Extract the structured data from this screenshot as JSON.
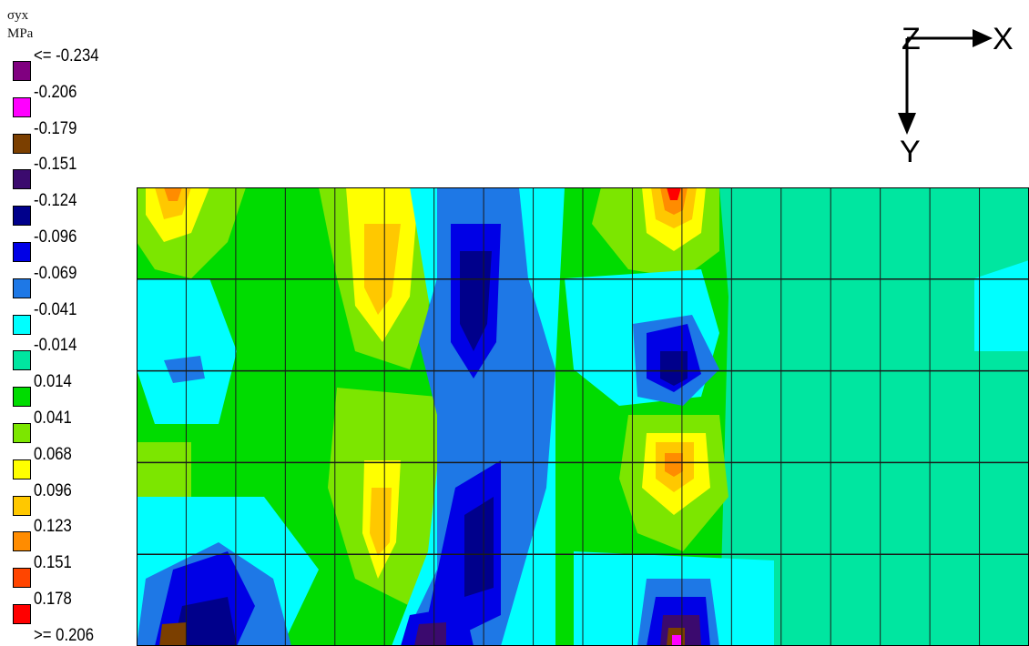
{
  "legend": {
    "title": "σyx",
    "unit": "MPa",
    "entries": [
      {
        "label": "<= -0.234",
        "color": "#800080"
      },
      {
        "label": "-0.206",
        "color": "#ff00ff"
      },
      {
        "label": "-0.179",
        "color": "#7b3f00"
      },
      {
        "label": "-0.151",
        "color": "#3b0a6e"
      },
      {
        "label": "-0.124",
        "color": "#00008b"
      },
      {
        "label": "-0.096",
        "color": "#0000e6"
      },
      {
        "label": "-0.069",
        "color": "#1e78e6"
      },
      {
        "label": "-0.041",
        "color": "#00ffff"
      },
      {
        "label": "-0.014",
        "color": "#00e6a0"
      },
      {
        "label": "0.014",
        "color": "#00dc00"
      },
      {
        "label": "0.041",
        "color": "#7ce600"
      },
      {
        "label": "0.068",
        "color": "#ffff00"
      },
      {
        "label": "0.096",
        "color": "#ffc800"
      },
      {
        "label": "0.123",
        "color": "#ff8c00"
      },
      {
        "label": "0.151",
        "color": "#ff4500"
      },
      {
        "label": "0.178",
        "color": "#ff0000"
      },
      {
        "label": ">= 0.206",
        "color": ""
      }
    ]
  },
  "axes": {
    "x_label": "X",
    "y_label": "Y",
    "z_label": "Z"
  },
  "mesh": {
    "columns": 18,
    "rows": 5
  }
}
